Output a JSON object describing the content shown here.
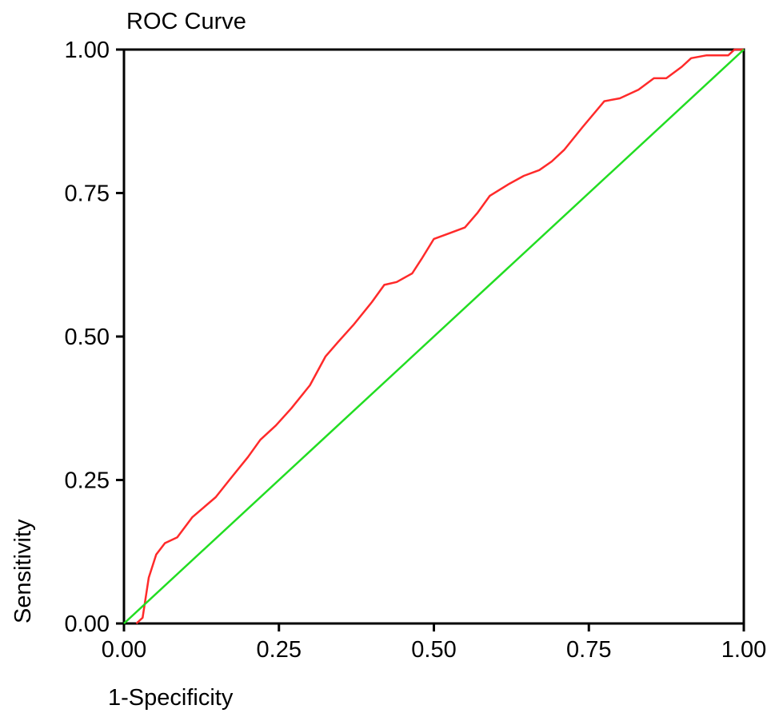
{
  "chart_data": {
    "type": "line",
    "title": "ROC Curve",
    "xlabel": "1-Specificity",
    "ylabel": "Sensitivity",
    "xlim": [
      0,
      1
    ],
    "ylim": [
      0,
      1
    ],
    "xticks": [
      "0.00",
      "0.25",
      "0.50",
      "0.75",
      "1.00"
    ],
    "yticks": [
      "0.00",
      "0.25",
      "0.50",
      "0.75",
      "1.00"
    ],
    "grid": false,
    "legend": "none",
    "series": [
      {
        "color": "#ff2a2a",
        "x": [
          0.02,
          0.03,
          0.04,
          0.052,
          0.066,
          0.086,
          0.11,
          0.148,
          0.17,
          0.2,
          0.22,
          0.245,
          0.27,
          0.3,
          0.325,
          0.345,
          0.37,
          0.4,
          0.42,
          0.44,
          0.465,
          0.48,
          0.5,
          0.525,
          0.55,
          0.57,
          0.59,
          0.62,
          0.645,
          0.67,
          0.69,
          0.71,
          0.74,
          0.775,
          0.8,
          0.83,
          0.855,
          0.875,
          0.9,
          0.915,
          0.94,
          0.96,
          0.975,
          0.985,
          1.0
        ],
        "y": [
          0.0,
          0.01,
          0.08,
          0.12,
          0.14,
          0.15,
          0.185,
          0.22,
          0.25,
          0.29,
          0.32,
          0.345,
          0.375,
          0.415,
          0.465,
          0.49,
          0.52,
          0.56,
          0.59,
          0.595,
          0.61,
          0.635,
          0.67,
          0.68,
          0.69,
          0.715,
          0.745,
          0.765,
          0.78,
          0.79,
          0.805,
          0.825,
          0.865,
          0.91,
          0.915,
          0.93,
          0.95,
          0.95,
          0.97,
          0.985,
          0.99,
          0.99,
          0.99,
          1.0,
          1.0
        ]
      },
      {
        "color": "#22dd22",
        "x": [
          0,
          1
        ],
        "y": [
          0,
          1
        ]
      }
    ]
  }
}
